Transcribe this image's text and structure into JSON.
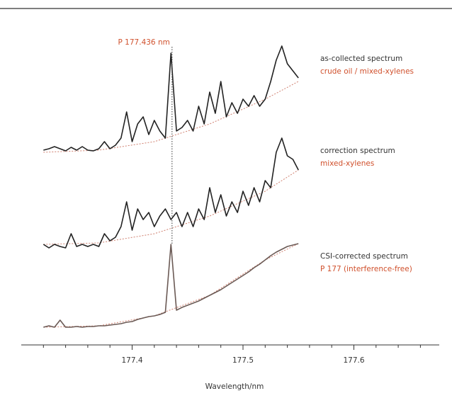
{
  "chart_data": {
    "type": "line",
    "xlabel": "Wavelength/nm",
    "annotation": {
      "text": "P 177.436 nm",
      "x": 177.436,
      "y": 135
    },
    "x": [
      177.32,
      177.325,
      177.33,
      177.335,
      177.34,
      177.345,
      177.35,
      177.355,
      177.36,
      177.365,
      177.37,
      177.375,
      177.38,
      177.385,
      177.39,
      177.395,
      177.4,
      177.405,
      177.41,
      177.415,
      177.42,
      177.425,
      177.43,
      177.435,
      177.44,
      177.445,
      177.45,
      177.455,
      177.46,
      177.465,
      177.47,
      177.475,
      177.48,
      177.485,
      177.49,
      177.495,
      177.5,
      177.505,
      177.51,
      177.515,
      177.52,
      177.525,
      177.53,
      177.535,
      177.54,
      177.545,
      177.55
    ],
    "baseline_x": [
      177.32,
      177.37,
      177.42,
      177.47,
      177.52,
      177.55
    ],
    "series": [
      {
        "name": "as-collected spectrum",
        "sublabel": "crude oil / mixed-xylenes",
        "color": "#222222",
        "values": [
          268,
          270,
          273,
          270,
          267,
          272,
          268,
          273,
          268,
          267,
          270,
          280,
          270,
          275,
          285,
          322,
          280,
          305,
          315,
          290,
          310,
          295,
          285,
          405,
          295,
          300,
          310,
          295,
          330,
          305,
          350,
          320,
          365,
          315,
          335,
          320,
          340,
          330,
          345,
          330,
          340,
          365,
          395,
          415,
          390,
          380,
          370
        ],
        "baseline": [
          265,
          268,
          280,
          305,
          340,
          365
        ]
      },
      {
        "name": "correction spectrum",
        "sublabel": "mixed-xylenes",
        "color": "#222222",
        "values": [
          135,
          130,
          135,
          132,
          130,
          150,
          132,
          135,
          132,
          135,
          132,
          150,
          140,
          145,
          160,
          195,
          155,
          185,
          170,
          180,
          160,
          175,
          185,
          170,
          180,
          160,
          180,
          160,
          185,
          170,
          215,
          180,
          205,
          175,
          195,
          180,
          210,
          190,
          215,
          195,
          225,
          215,
          265,
          285,
          260,
          255,
          240
        ],
        "baseline": [
          135,
          137,
          150,
          175,
          210,
          240
        ]
      },
      {
        "name": "CSI-corrected spectrum",
        "sublabel": "P 177 (interference-free)",
        "color": "#6b5a55",
        "values": [
          18,
          20,
          18,
          28,
          18,
          18,
          19,
          18,
          19,
          19,
          20,
          20,
          21,
          22,
          23,
          25,
          26,
          29,
          31,
          33,
          34,
          36,
          39,
          135,
          42,
          46,
          49,
          52,
          55,
          59,
          63,
          67,
          71,
          76,
          81,
          86,
          91,
          96,
          102,
          107,
          113,
          119,
          124,
          128,
          132,
          134,
          136
        ],
        "baseline": [
          18,
          20,
          34,
          63,
          113,
          136
        ]
      }
    ],
    "baseline_color": "#d08070",
    "sublabel_color": "#d0502c",
    "xlim": [
      177.3,
      177.677
    ],
    "ylim": [
      0,
      430
    ],
    "xticks": [
      177.4,
      177.5,
      177.6
    ],
    "xminorticks": [
      177.32,
      177.34,
      177.36,
      177.38,
      177.42,
      177.44,
      177.46,
      177.48,
      177.52,
      177.54,
      177.56,
      177.58,
      177.62,
      177.64,
      177.66
    ]
  }
}
